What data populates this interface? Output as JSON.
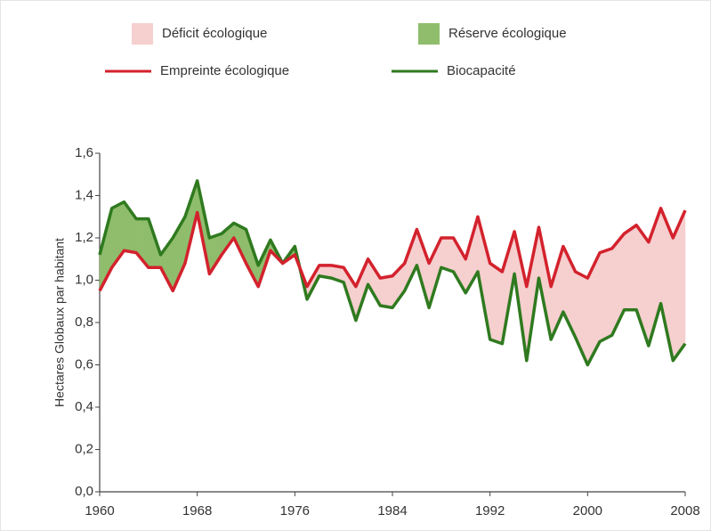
{
  "chart_data": {
    "type": "line",
    "y_label": "Hectares Globaux par habitant",
    "areas": [
      {
        "name": "Déficit écologique",
        "color": "#f6cfcf"
      },
      {
        "name": "Réserve écologique",
        "color": "#8fbd6c"
      }
    ],
    "x": [
      1960,
      1961,
      1962,
      1963,
      1964,
      1965,
      1966,
      1967,
      1968,
      1969,
      1970,
      1971,
      1972,
      1973,
      1974,
      1975,
      1976,
      1977,
      1978,
      1979,
      1980,
      1981,
      1982,
      1983,
      1984,
      1985,
      1986,
      1987,
      1988,
      1989,
      1990,
      1991,
      1992,
      1993,
      1994,
      1995,
      1996,
      1997,
      1998,
      1999,
      2000,
      2001,
      2002,
      2003,
      2004,
      2005,
      2006,
      2007,
      2008
    ],
    "series": [
      {
        "name": "Empreinte écologique",
        "color": "#d3222d",
        "values": [
          0.95,
          1.06,
          1.14,
          1.13,
          1.06,
          1.06,
          0.95,
          1.08,
          1.32,
          1.03,
          1.12,
          1.2,
          1.08,
          0.97,
          1.14,
          1.08,
          1.12,
          0.97,
          1.07,
          1.07,
          1.06,
          0.97,
          1.1,
          1.01,
          1.02,
          1.08,
          1.24,
          1.08,
          1.2,
          1.2,
          1.1,
          1.3,
          1.08,
          1.04,
          1.23,
          0.97,
          1.25,
          0.97,
          1.16,
          1.04,
          1.01,
          1.13,
          1.15,
          1.22,
          1.26,
          1.18,
          1.34,
          1.2,
          1.33
        ]
      },
      {
        "name": "Biocapacité",
        "color": "#2f7a1f",
        "values": [
          1.12,
          1.34,
          1.37,
          1.29,
          1.29,
          1.12,
          1.2,
          1.3,
          1.47,
          1.2,
          1.22,
          1.27,
          1.24,
          1.07,
          1.19,
          1.08,
          1.16,
          0.91,
          1.02,
          1.01,
          0.99,
          0.81,
          0.98,
          0.88,
          0.87,
          0.95,
          1.07,
          0.87,
          1.06,
          1.04,
          0.94,
          1.04,
          0.72,
          0.7,
          1.03,
          0.62,
          1.01,
          0.72,
          0.85,
          0.73,
          0.6,
          0.71,
          0.74,
          0.86,
          0.86,
          0.69,
          0.89,
          0.62,
          0.7
        ]
      }
    ],
    "xlim": [
      1960,
      2008
    ],
    "xticks": [
      1960,
      1968,
      1976,
      1984,
      1992,
      2000,
      2008
    ],
    "ylim": [
      0,
      1.6
    ],
    "yticks": [
      {
        "value": 0,
        "label": "0,0"
      },
      {
        "value": 0.2,
        "label": "0,2"
      },
      {
        "value": 0.4,
        "label": "0,4"
      },
      {
        "value": 0.6,
        "label": "0,6"
      },
      {
        "value": 0.8,
        "label": "0,8"
      },
      {
        "value": 1.0,
        "label": "1,0"
      },
      {
        "value": 1.2,
        "label": "1,2"
      },
      {
        "value": 1.4,
        "label": "1,4"
      },
      {
        "value": 1.6,
        "label": "1,6"
      }
    ]
  }
}
